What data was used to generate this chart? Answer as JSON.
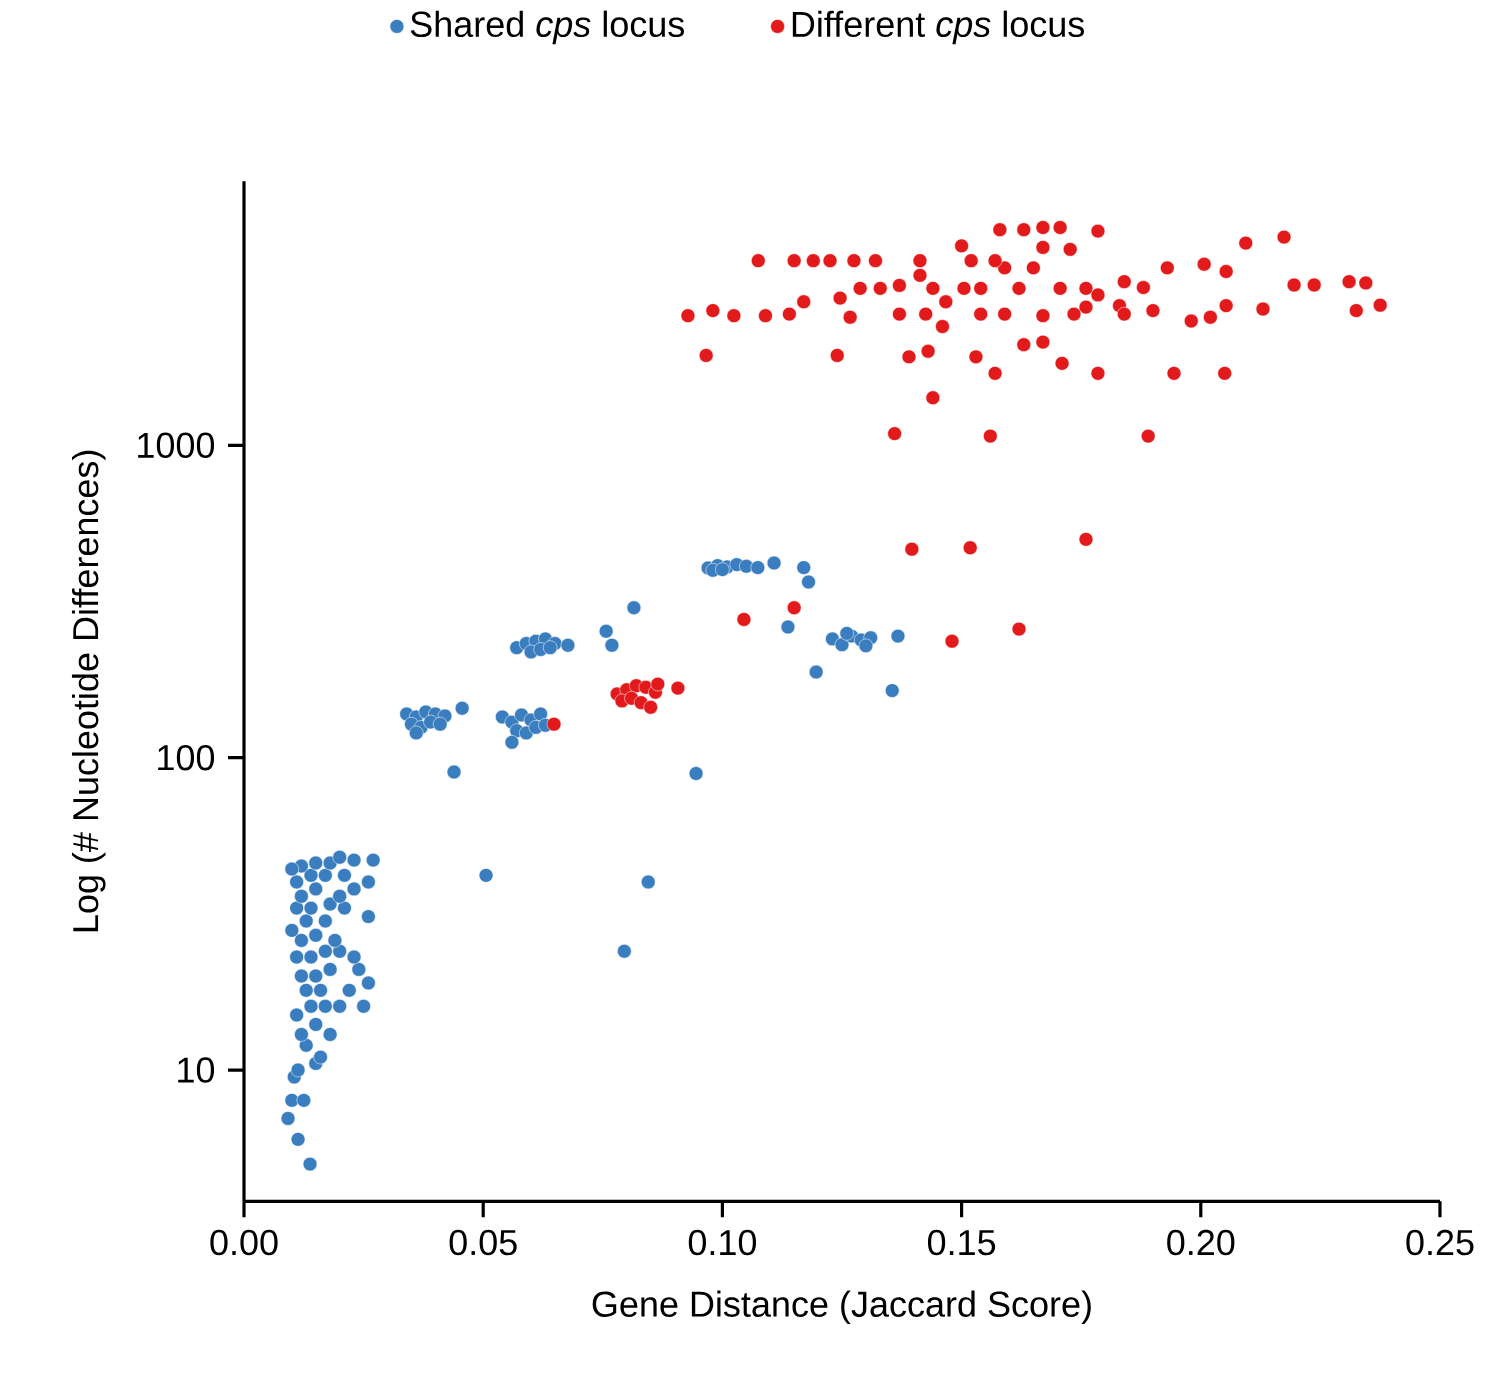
{
  "chart_data": {
    "type": "scatter",
    "xlabel": "Gene Distance (Jaccard Score)",
    "ylabel": "Log (# Nucleotide Differences)",
    "log": "y",
    "legend": "top",
    "marker": "circle",
    "xlim": [
      0,
      0.25
    ],
    "ylim": [
      3.8,
      7000
    ],
    "xticks": [
      {
        "value": 0,
        "label": "0.00"
      },
      {
        "value": 0.05,
        "label": "0.05"
      },
      {
        "value": 0.1,
        "label": "0.10"
      },
      {
        "value": 0.15,
        "label": "0.15"
      },
      {
        "value": 0.2,
        "label": "0.20"
      },
      {
        "value": 0.25,
        "label": "0.25"
      }
    ],
    "yticks": [
      10,
      100,
      1000
    ],
    "series": [
      {
        "name": "Shared *cps* locus",
        "color": "#3a7ebf",
        "x": [
          0.0138,
          0.0113,
          0.0092,
          0.01,
          0.0125,
          0.0105,
          0.0113,
          0.015,
          0.016,
          0.013,
          0.012,
          0.018,
          0.015,
          0.011,
          0.014,
          0.017,
          0.02,
          0.025,
          0.013,
          0.016,
          0.022,
          0.026,
          0.012,
          0.015,
          0.018,
          0.024,
          0.011,
          0.014,
          0.017,
          0.02,
          0.023,
          0.012,
          0.015,
          0.019,
          0.01,
          0.013,
          0.017,
          0.011,
          0.014,
          0.018,
          0.021,
          0.026,
          0.012,
          0.015,
          0.02,
          0.023,
          0.011,
          0.014,
          0.017,
          0.021,
          0.026,
          0.012,
          0.015,
          0.018,
          0.023,
          0.027,
          0.02,
          0.01,
          0.0506,
          0.0845,
          0.0795,
          0.0945,
          0.034,
          0.036,
          0.038,
          0.04,
          0.042,
          0.035,
          0.037,
          0.039,
          0.041,
          0.036,
          0.0456,
          0.0439,
          0.054,
          0.056,
          0.058,
          0.06,
          0.062,
          0.057,
          0.059,
          0.061,
          0.063,
          0.056,
          0.057,
          0.059,
          0.061,
          0.063,
          0.065,
          0.06,
          0.062,
          0.064,
          0.0677,
          0.0757,
          0.0769,
          0.0815,
          0.097,
          0.099,
          0.101,
          0.103,
          0.105,
          0.098,
          0.1,
          0.1074,
          0.1108,
          0.117,
          0.118,
          0.1137,
          0.1196,
          0.123,
          0.125,
          0.127,
          0.129,
          0.131,
          0.126,
          0.13,
          0.1367,
          0.1355
        ],
        "values": [
          5,
          6,
          7,
          8,
          8,
          9.5,
          10,
          10.5,
          11,
          12,
          13,
          13,
          14,
          15,
          16,
          16,
          16,
          16,
          18,
          18,
          18,
          19,
          20,
          20,
          21,
          21,
          23,
          23,
          24,
          24,
          23,
          26,
          27,
          26,
          28,
          30,
          30,
          33,
          33,
          34,
          33,
          31,
          36,
          38,
          36,
          38,
          40,
          42,
          42,
          42,
          40,
          45,
          46,
          46,
          47,
          47,
          48,
          44,
          42,
          40,
          24,
          89,
          138,
          135,
          140,
          138,
          136,
          128,
          125,
          130,
          128,
          120,
          144,
          90,
          135,
          130,
          137,
          132,
          138,
          122,
          120,
          125,
          127,
          112,
          225,
          232,
          236,
          240,
          232,
          218,
          222,
          225,
          229,
          254,
          229,
          302,
          405,
          412,
          408,
          415,
          410,
          398,
          400,
          406,
          420,
          406,
          365,
          262,
          188,
          240,
          230,
          245,
          238,
          242,
          250,
          228,
          245,
          164
        ]
      },
      {
        "name": "Different *cps* locus",
        "color": "#e31a1c",
        "x": [
          0.078,
          0.08,
          0.082,
          0.084,
          0.086,
          0.079,
          0.081,
          0.083,
          0.085,
          0.0865,
          0.0907,
          0.0648,
          0.1045,
          0.115,
          0.148,
          0.1396,
          0.1518,
          0.176,
          0.162,
          0.136,
          0.156,
          0.189,
          0.144,
          0.0966,
          0.124,
          0.139,
          0.143,
          0.153,
          0.157,
          0.163,
          0.167,
          0.171,
          0.1785,
          0.1944,
          0.205,
          0.213,
          0.2325,
          0.2375,
          0.231,
          0.2345,
          0.2237,
          0.2195,
          0.2174,
          0.2094,
          0.2053,
          0.2053,
          0.202,
          0.2007,
          0.198,
          0.193,
          0.19,
          0.188,
          0.184,
          0.183,
          0.1785,
          0.1785,
          0.176,
          0.1727,
          0.1706,
          0.167,
          0.163,
          0.158,
          0.167,
          0.165,
          0.1735,
          0.1706,
          0.167,
          0.162,
          0.159,
          0.157,
          0.154,
          0.152,
          0.15,
          0.154,
          0.1505,
          0.1467,
          0.144,
          0.1413,
          0.1413,
          0.1425,
          0.146,
          0.137,
          0.137,
          0.132,
          0.133,
          0.1275,
          0.1225,
          0.119,
          0.115,
          0.1075,
          0.1288,
          0.1246,
          0.1267,
          0.117,
          0.114,
          0.109,
          0.1024,
          0.098,
          0.0928,
          0.176,
          0.184,
          0.159
        ],
        "values": [
          160,
          165,
          170,
          168,
          162,
          152,
          155,
          150,
          145,
          172,
          167,
          128,
          277,
          302,
          236,
          465,
          470,
          500,
          258,
          1090,
          1070,
          1070,
          1420,
          1940,
          1940,
          1920,
          2000,
          1920,
          1700,
          2100,
          2140,
          1830,
          1700,
          1700,
          1700,
          2730,
          2700,
          2810,
          3340,
          3310,
          3260,
          3260,
          4640,
          4440,
          3600,
          2800,
          2570,
          3800,
          2500,
          3700,
          2700,
          3200,
          3340,
          2800,
          4850,
          3030,
          3180,
          4240,
          4980,
          4980,
          4900,
          4900,
          4300,
          3700,
          2630,
          3180,
          2600,
          3180,
          3700,
          3900,
          3180,
          3900,
          4350,
          2630,
          3180,
          2880,
          3180,
          3500,
          3900,
          2630,
          2400,
          2630,
          3250,
          3900,
          3180,
          3900,
          3900,
          3900,
          3900,
          3900,
          3180,
          2960,
          2570,
          2880,
          2630,
          2600,
          2600,
          2700,
          2600,
          2770,
          2630,
          2630
        ]
      }
    ]
  }
}
